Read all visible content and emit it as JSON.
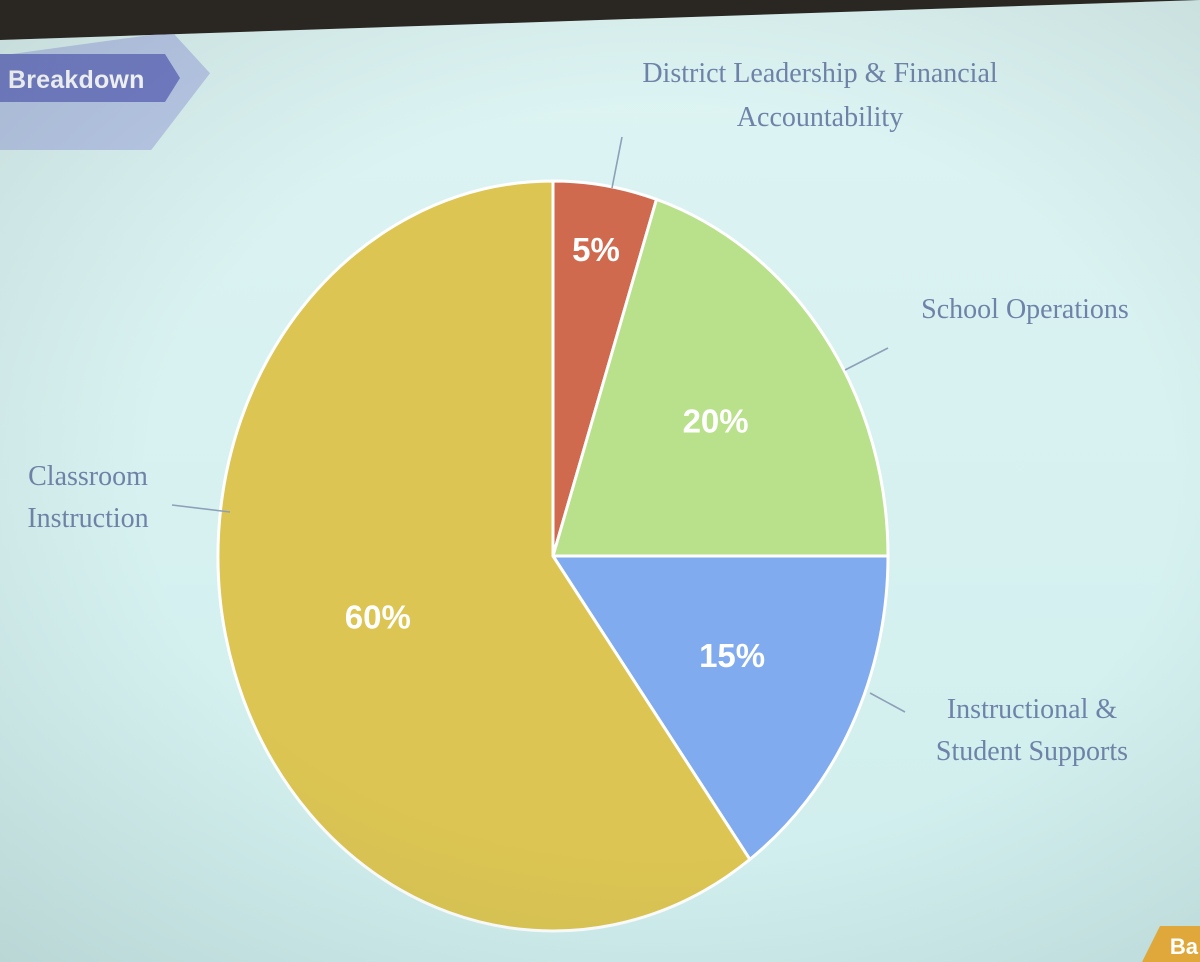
{
  "banner": {
    "label": "Breakdown"
  },
  "corner_tab": {
    "label": "Ba"
  },
  "chart_data": {
    "type": "pie",
    "title": "",
    "categories": [
      "District Leadership & Financial Accountability",
      "School Operations",
      "Instructional & Student Supports",
      "Classroom Instruction"
    ],
    "values": [
      5,
      20,
      15,
      60
    ],
    "data_labels": [
      "5%",
      "20%",
      "15%",
      "60%"
    ],
    "category_label_lines": [
      [
        "District Leadership & Financial",
        "Accountability"
      ],
      [
        "School Operations"
      ],
      [
        "Instructional &",
        "Student Supports"
      ],
      [
        "Classroom",
        "Instruction"
      ]
    ],
    "colors": [
      "#cf6a4f",
      "#b9e08a",
      "#80abee",
      "#dcc552"
    ],
    "start": "top, clockwise",
    "legend": "none (category labels placed around pie with leader lines)"
  }
}
